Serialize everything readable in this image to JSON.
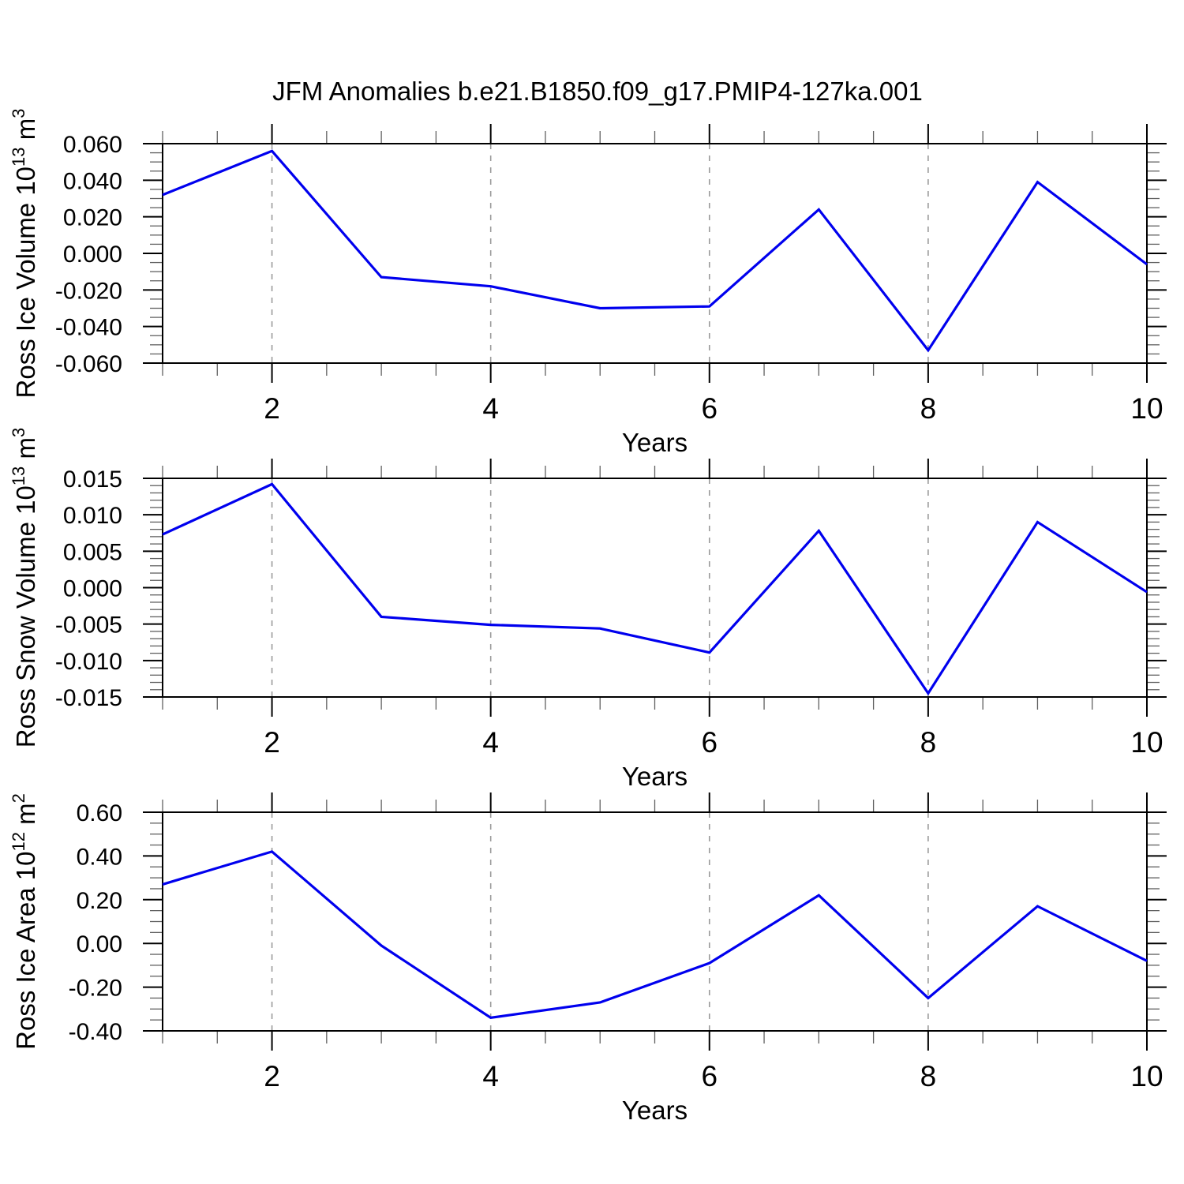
{
  "title": "JFM Anomalies b.e21.B1850.f09_g17.PMIP4-127ka.001",
  "colors": {
    "line": "#0000ee",
    "axis": "#000000",
    "grid": "#9a9a9a",
    "minor_tick": "#606060",
    "text": "#000000"
  },
  "chart_data": [
    {
      "type": "line",
      "id": "ross-ice-volume",
      "ylabel_plain": "Ross Ice Volume 10^13 m^3",
      "ylabel_parts": [
        [
          "Ross Ice Volume 10",
          0
        ],
        [
          "13",
          1
        ],
        [
          " m",
          0
        ],
        [
          "3",
          1
        ]
      ],
      "xlabel": "Years",
      "x": [
        1,
        2,
        3,
        4,
        5,
        6,
        7,
        8,
        9,
        10
      ],
      "values": [
        0.032,
        0.056,
        -0.013,
        -0.018,
        -0.03,
        -0.029,
        0.024,
        -0.053,
        0.039,
        -0.006
      ],
      "xlim": [
        1,
        10
      ],
      "ylim": [
        -0.06,
        0.06
      ],
      "xticks": [
        2,
        4,
        6,
        8,
        10
      ],
      "xtick_labels": [
        "2",
        "4",
        "6",
        "8",
        "10"
      ],
      "xminor_step": 0.5,
      "yticks": [
        0.06,
        0.04,
        0.02,
        0.0,
        -0.02,
        -0.04,
        -0.06
      ],
      "ytick_labels": [
        "0.060",
        "0.040",
        "0.020",
        "0.000",
        "-0.020",
        "-0.040",
        "-0.060"
      ],
      "yminor_step": 0.005,
      "grid_x": [
        2,
        4,
        6,
        8
      ],
      "grid_on": true,
      "legend": "none"
    },
    {
      "type": "line",
      "id": "ross-snow-volume",
      "ylabel_plain": "Ross Snow Volume 10^13 m^3",
      "ylabel_parts": [
        [
          "Ross Snow Volume 10",
          0
        ],
        [
          "13",
          1
        ],
        [
          " m",
          0
        ],
        [
          "3",
          1
        ]
      ],
      "xlabel": "Years",
      "x": [
        1,
        2,
        3,
        4,
        5,
        6,
        7,
        8,
        9,
        10
      ],
      "values": [
        0.0073,
        0.0142,
        -0.004,
        -0.0051,
        -0.0056,
        -0.0089,
        0.0078,
        -0.0145,
        0.009,
        -0.0006
      ],
      "xlim": [
        1,
        10
      ],
      "ylim": [
        -0.015,
        0.015
      ],
      "xticks": [
        2,
        4,
        6,
        8,
        10
      ],
      "xtick_labels": [
        "2",
        "4",
        "6",
        "8",
        "10"
      ],
      "xminor_step": 0.5,
      "yticks": [
        0.015,
        0.01,
        0.005,
        0.0,
        -0.005,
        -0.01,
        -0.015
      ],
      "ytick_labels": [
        "0.015",
        "0.010",
        "0.005",
        "0.000",
        "-0.005",
        "-0.010",
        "-0.015"
      ],
      "yminor_step": 0.001,
      "grid_x": [
        2,
        4,
        6,
        8
      ],
      "grid_on": true,
      "legend": "none"
    },
    {
      "type": "line",
      "id": "ross-ice-area",
      "ylabel_plain": "Ross Ice Area 10^12 m^2",
      "ylabel_parts": [
        [
          "Ross Ice Area 10",
          0
        ],
        [
          "12",
          1
        ],
        [
          " m",
          0
        ],
        [
          "2",
          1
        ]
      ],
      "xlabel": "Years",
      "x": [
        1,
        2,
        3,
        4,
        5,
        6,
        7,
        8,
        9,
        10
      ],
      "values": [
        0.27,
        0.42,
        -0.01,
        -0.34,
        -0.27,
        -0.09,
        0.22,
        -0.25,
        0.17,
        -0.08
      ],
      "xlim": [
        1,
        10
      ],
      "ylim": [
        -0.4,
        0.6
      ],
      "xticks": [
        2,
        4,
        6,
        8,
        10
      ],
      "xtick_labels": [
        "2",
        "4",
        "6",
        "8",
        "10"
      ],
      "xminor_step": 0.5,
      "yticks": [
        0.6,
        0.4,
        0.2,
        0.0,
        -0.2,
        -0.4
      ],
      "ytick_labels": [
        "0.60",
        "0.40",
        "0.20",
        "0.00",
        "-0.20",
        "-0.40"
      ],
      "yminor_step": 0.05,
      "grid_x": [
        2,
        4,
        6,
        8
      ],
      "grid_on": true,
      "legend": "none"
    }
  ]
}
